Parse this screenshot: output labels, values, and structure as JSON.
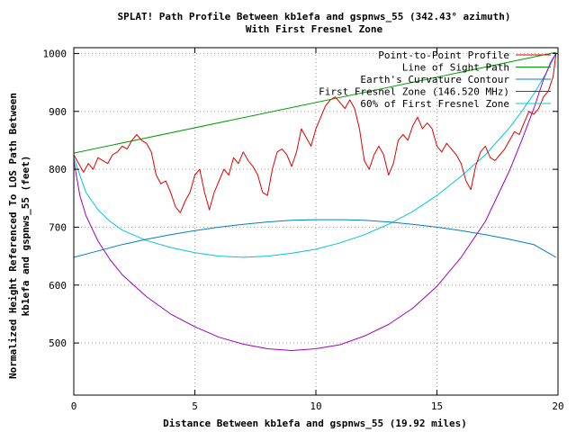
{
  "chart_data": {
    "type": "line",
    "title": "SPLAT! Path Profile Between kb1efa and gspnws_55 (342.43° azimuth)",
    "subtitle": "With First Fresnel Zone",
    "xlabel": "Distance Between kb1efa and gspnws_55 (19.92 miles)",
    "ylabel_line1": "Normalized Height Referenced To LOS Path Between",
    "ylabel_line2": "kb1efa and gspnws_55 (feet)",
    "xlim": [
      0,
      20
    ],
    "ylim": [
      410,
      1010
    ],
    "x_ticks": [
      0,
      5,
      10,
      15,
      20
    ],
    "x_tick_labels": [
      "0",
      "5",
      "10",
      "15",
      "20"
    ],
    "y_ticks": [
      500,
      600,
      700,
      800,
      900,
      1000
    ],
    "y_tick_labels": [
      "500",
      "600",
      "700",
      "800",
      "900",
      "1000"
    ],
    "grid": true,
    "legend_position": "top-right",
    "series": [
      {
        "name": "Point-to-Point Profile",
        "color": "#e00000",
        "x": [
          0,
          0.2,
          0.4,
          0.6,
          0.8,
          1.0,
          1.2,
          1.4,
          1.6,
          1.8,
          2.0,
          2.2,
          2.4,
          2.6,
          2.8,
          3.0,
          3.2,
          3.4,
          3.6,
          3.8,
          4.0,
          4.2,
          4.4,
          4.6,
          4.8,
          5.0,
          5.2,
          5.4,
          5.6,
          5.8,
          6.0,
          6.2,
          6.4,
          6.6,
          6.8,
          7.0,
          7.2,
          7.4,
          7.6,
          7.8,
          8.0,
          8.2,
          8.4,
          8.6,
          8.8,
          9.0,
          9.2,
          9.4,
          9.6,
          9.8,
          10.0,
          10.2,
          10.4,
          10.6,
          10.8,
          11.0,
          11.2,
          11.4,
          11.6,
          11.8,
          12.0,
          12.2,
          12.4,
          12.6,
          12.8,
          13.0,
          13.2,
          13.4,
          13.6,
          13.8,
          14.0,
          14.2,
          14.4,
          14.6,
          14.8,
          15.0,
          15.2,
          15.4,
          15.6,
          15.8,
          16.0,
          16.2,
          16.4,
          16.6,
          16.8,
          17.0,
          17.2,
          17.4,
          17.6,
          17.8,
          18.0,
          18.2,
          18.4,
          18.6,
          18.8,
          19.0,
          19.2,
          19.4,
          19.6,
          19.8,
          19.92
        ],
        "y": [
          825,
          810,
          795,
          810,
          800,
          820,
          815,
          810,
          825,
          830,
          840,
          835,
          850,
          860,
          850,
          845,
          830,
          790,
          775,
          780,
          760,
          735,
          725,
          745,
          760,
          790,
          800,
          760,
          730,
          760,
          780,
          800,
          790,
          820,
          810,
          830,
          815,
          805,
          790,
          760,
          755,
          800,
          830,
          835,
          825,
          805,
          830,
          870,
          855,
          840,
          870,
          890,
          910,
          920,
          925,
          915,
          905,
          920,
          905,
          870,
          815,
          800,
          825,
          840,
          825,
          790,
          810,
          850,
          860,
          850,
          875,
          890,
          870,
          880,
          870,
          840,
          830,
          845,
          835,
          825,
          810,
          780,
          765,
          805,
          830,
          840,
          820,
          815,
          825,
          835,
          850,
          865,
          860,
          880,
          900,
          895,
          905,
          925,
          935,
          960,
          1000
        ]
      },
      {
        "name": "Line of Sight Path",
        "color": "#00a000",
        "x": [
          0,
          19.92
        ],
        "y": [
          828,
          1002
        ]
      },
      {
        "name": "Earth's Curvature Contour",
        "color": "#0080c0",
        "x": [
          0,
          1,
          2,
          3,
          4,
          5,
          6,
          7,
          8,
          9,
          10,
          11,
          12,
          13,
          14,
          15,
          16,
          17,
          18,
          19,
          19.92
        ],
        "y": [
          648,
          659,
          670,
          679,
          687,
          694,
          700,
          705,
          709,
          712,
          713,
          713,
          712,
          709,
          705,
          700,
          694,
          687,
          679,
          670,
          648
        ]
      },
      {
        "name": "First Fresnel Zone (146.520 MHz)",
        "color": "#a000c0",
        "x": [
          0,
          0.25,
          0.5,
          1,
          1.5,
          2,
          3,
          4,
          5,
          6,
          7,
          8,
          9,
          10,
          11,
          12,
          13,
          14,
          15,
          16,
          17,
          18,
          18.5,
          19,
          19.4,
          19.7,
          19.92
        ],
        "y": [
          815,
          755,
          720,
          676,
          644,
          618,
          580,
          550,
          528,
          510,
          498,
          490,
          487,
          490,
          497,
          512,
          532,
          560,
          598,
          648,
          710,
          798,
          850,
          905,
          955,
          985,
          1000
        ]
      },
      {
        "name": "60% of First Fresnel Zone",
        "color": "#00c8d8",
        "x": [
          0,
          0.5,
          1,
          1.5,
          2,
          3,
          4,
          5,
          6,
          7,
          8,
          9,
          10,
          11,
          12,
          13,
          14,
          15,
          16,
          17,
          18,
          18.5,
          19,
          19.5,
          19.92
        ],
        "y": [
          820,
          760,
          730,
          710,
          695,
          677,
          665,
          656,
          650,
          648,
          650,
          655,
          662,
          673,
          687,
          705,
          727,
          755,
          788,
          825,
          872,
          900,
          930,
          965,
          1000
        ]
      }
    ]
  }
}
